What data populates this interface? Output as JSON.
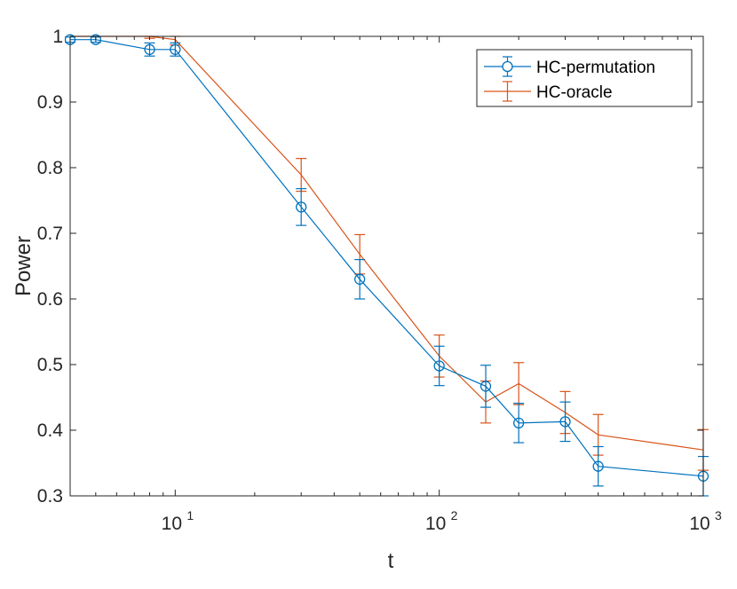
{
  "chart_data": {
    "type": "line",
    "title": "",
    "xlabel": "t",
    "ylabel": "Power",
    "xscale": "log",
    "xlim": [
      4,
      1000
    ],
    "ylim": [
      0.3,
      1.0
    ],
    "x_ticks": [
      {
        "value": 10,
        "base": "10",
        "exp": "1"
      },
      {
        "value": 100,
        "base": "10",
        "exp": "2"
      },
      {
        "value": 1000,
        "base": "10",
        "exp": "3"
      }
    ],
    "y_ticks": [
      "0.3",
      "0.4",
      "0.5",
      "0.6",
      "0.7",
      "0.8",
      "0.9",
      "1"
    ],
    "legend_position": "top-right",
    "series": [
      {
        "name": "HC-permutation",
        "color": "#0072BD",
        "marker": "circle",
        "x": [
          4,
          5,
          8,
          10,
          30,
          50,
          100,
          150,
          200,
          300,
          400,
          1000
        ],
        "y": [
          0.995,
          0.995,
          0.98,
          0.98,
          0.74,
          0.63,
          0.498,
          0.467,
          0.411,
          0.413,
          0.345,
          0.33
        ],
        "err": [
          0.004,
          0.004,
          0.01,
          0.01,
          0.028,
          0.03,
          0.03,
          0.032,
          0.03,
          0.03,
          0.03,
          0.03
        ]
      },
      {
        "name": "HC-oracle",
        "color": "#D95319",
        "marker": "none",
        "x": [
          4,
          5,
          8,
          10,
          30,
          50,
          100,
          150,
          200,
          300,
          400,
          1000
        ],
        "y": [
          1.0,
          1.0,
          1.0,
          0.995,
          0.789,
          0.668,
          0.513,
          0.443,
          0.471,
          0.427,
          0.393,
          0.37
        ],
        "err": [
          0.0,
          0.0,
          0.003,
          0.008,
          0.025,
          0.03,
          0.032,
          0.032,
          0.032,
          0.032,
          0.031,
          0.031
        ]
      }
    ]
  }
}
